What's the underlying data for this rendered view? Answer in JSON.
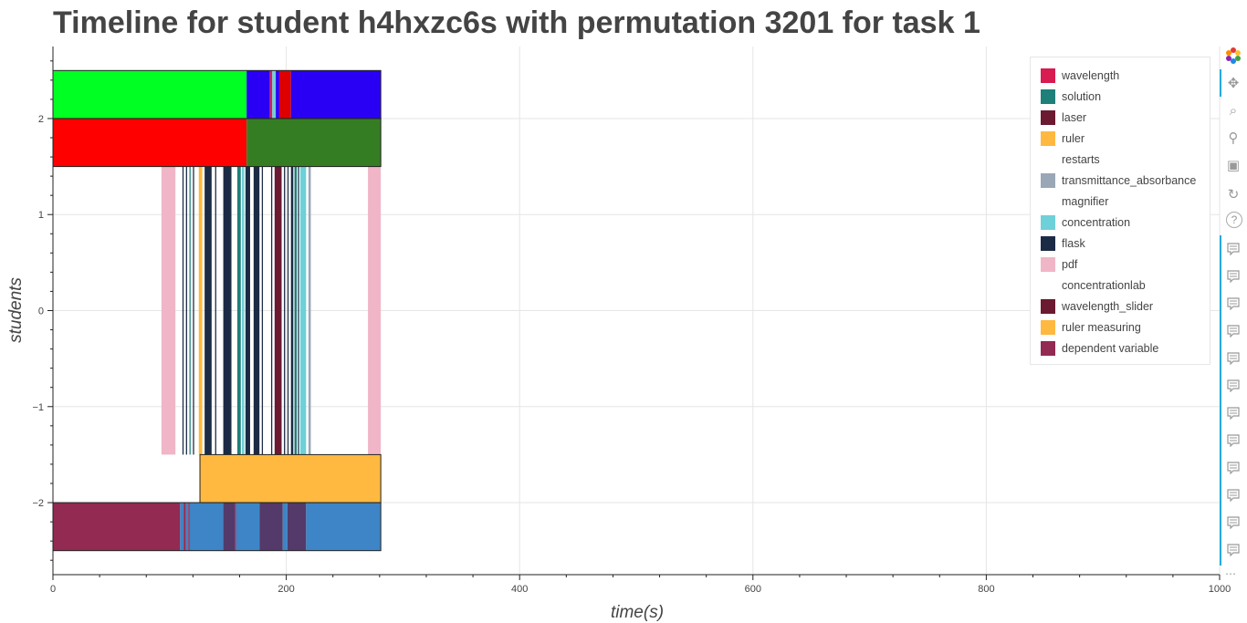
{
  "title": "Timeline for student h4hxzc6s with permutation 3201 for task 1",
  "chart_data": {
    "type": "bar",
    "orientation": "horizontal-timeline",
    "xlabel": "time(s)",
    "ylabel": "students",
    "xlim": [
      0,
      1000
    ],
    "ylim": [
      -2.75,
      2.75
    ],
    "x_ticks": [
      0,
      200,
      400,
      600,
      800,
      1000
    ],
    "y_ticks": [
      -2,
      -1,
      0,
      1,
      2
    ],
    "y_tick_labels": [
      "−2",
      "−1",
      "0",
      "1",
      "2"
    ],
    "grid": true,
    "legend_position": "top-right",
    "legend": [
      {
        "label": "wavelength",
        "color": "#d81b50"
      },
      {
        "label": "solution",
        "color": "#1f7f79"
      },
      {
        "label": "laser",
        "color": "#6b1a31"
      },
      {
        "label": "ruler",
        "color": "#ffb940"
      },
      {
        "label": "restarts",
        "color": "#ffffff"
      },
      {
        "label": "transmittance_absorbance",
        "color": "#9aa7b6"
      },
      {
        "label": "magnifier",
        "color": "#ffffff"
      },
      {
        "label": "concentration",
        "color": "#6ed0d8"
      },
      {
        "label": "flask",
        "color": "#1c2b45"
      },
      {
        "label": "pdf",
        "color": "#f0b6c8"
      },
      {
        "label": "concentrationlab",
        "color": "#ffffff"
      },
      {
        "label": "wavelength_slider",
        "color": "#6b1a31"
      },
      {
        "label": "ruler measuring",
        "color": "#ffb940"
      },
      {
        "label": "dependent variable",
        "color": "#922a52"
      }
    ],
    "rows": [
      {
        "y_bottom": 2.0,
        "y_top": 2.5,
        "segments": [
          {
            "start": 0,
            "end": 166,
            "color": "#00ff22"
          },
          {
            "start": 166,
            "end": 186,
            "color": "#2a00f5"
          },
          {
            "start": 186,
            "end": 188,
            "color": "#d42050"
          },
          {
            "start": 188,
            "end": 191,
            "color": "#6ed0d8"
          },
          {
            "start": 191,
            "end": 194,
            "color": "#2a00f5"
          },
          {
            "start": 194,
            "end": 204,
            "color": "#dd0000"
          },
          {
            "start": 204,
            "end": 281,
            "color": "#2a00f5"
          }
        ]
      },
      {
        "y_bottom": 1.5,
        "y_top": 2.0,
        "segments": [
          {
            "start": 0,
            "end": 166,
            "color": "#ff0000"
          },
          {
            "start": 166,
            "end": 281,
            "color": "#357d23"
          }
        ]
      },
      {
        "y_bottom": -1.5,
        "y_top": 1.5,
        "segments": [
          {
            "start": 93,
            "end": 105,
            "color": "#f0b6c8"
          },
          {
            "start": 111,
            "end": 112,
            "color": "#1c2b45"
          },
          {
            "start": 114,
            "end": 115,
            "color": "#1c2b45"
          },
          {
            "start": 117,
            "end": 118,
            "color": "#1f7f79"
          },
          {
            "start": 120,
            "end": 121,
            "color": "#1c2b45"
          },
          {
            "start": 125,
            "end": 128,
            "color": "#ffb940"
          },
          {
            "start": 130,
            "end": 136,
            "color": "#1c2b45"
          },
          {
            "start": 139,
            "end": 140,
            "color": "#1c2b45"
          },
          {
            "start": 146,
            "end": 153,
            "color": "#1c2b45"
          },
          {
            "start": 158,
            "end": 161,
            "color": "#1f7f79"
          },
          {
            "start": 162,
            "end": 164,
            "color": "#6ed0d8"
          },
          {
            "start": 165,
            "end": 169,
            "color": "#1c2b45"
          },
          {
            "start": 172,
            "end": 177,
            "color": "#1c2b45"
          },
          {
            "start": 179,
            "end": 180,
            "color": "#1c2b45"
          },
          {
            "start": 187,
            "end": 188,
            "color": "#1c2b45"
          },
          {
            "start": 190,
            "end": 196,
            "color": "#6b1a31"
          },
          {
            "start": 198,
            "end": 199,
            "color": "#1c2b45"
          },
          {
            "start": 201,
            "end": 202,
            "color": "#1c2b45"
          },
          {
            "start": 204,
            "end": 206,
            "color": "#1c2b45"
          },
          {
            "start": 207,
            "end": 209,
            "color": "#1f7f79"
          },
          {
            "start": 210,
            "end": 211,
            "color": "#1c2b45"
          },
          {
            "start": 212,
            "end": 217,
            "color": "#6ed0d8"
          },
          {
            "start": 219,
            "end": 221,
            "color": "#9aa7b6"
          },
          {
            "start": 270,
            "end": 281,
            "color": "#f0b6c8"
          }
        ]
      },
      {
        "y_bottom": -2.0,
        "y_top": -1.5,
        "segments": [
          {
            "start": 126,
            "end": 281,
            "color": "#ffb940"
          }
        ]
      },
      {
        "y_bottom": -2.5,
        "y_top": -2.0,
        "segments": [
          {
            "start": 0,
            "end": 109,
            "color": "#922a52"
          },
          {
            "start": 109,
            "end": 112,
            "color": "#3d85c6"
          },
          {
            "start": 112,
            "end": 114,
            "color": "#922a52"
          },
          {
            "start": 114,
            "end": 116,
            "color": "#3d85c6"
          },
          {
            "start": 116,
            "end": 117,
            "color": "#922a52"
          },
          {
            "start": 117,
            "end": 146,
            "color": "#3d85c6"
          },
          {
            "start": 146,
            "end": 156,
            "color": "#533a6a"
          },
          {
            "start": 156,
            "end": 157,
            "color": "#922a52"
          },
          {
            "start": 157,
            "end": 177,
            "color": "#3d85c6"
          },
          {
            "start": 177,
            "end": 197,
            "color": "#533a6a"
          },
          {
            "start": 197,
            "end": 201,
            "color": "#3d85c6"
          },
          {
            "start": 201,
            "end": 217,
            "color": "#533a6a"
          },
          {
            "start": 217,
            "end": 281,
            "color": "#3d85c6"
          }
        ]
      }
    ]
  },
  "toolbar": {
    "tools": [
      "bokeh-logo-icon",
      "pan-icon",
      "box-zoom-icon",
      "wheel-zoom-icon",
      "save-icon",
      "reset-icon",
      "help-icon"
    ],
    "hover_tool_count": 12
  }
}
